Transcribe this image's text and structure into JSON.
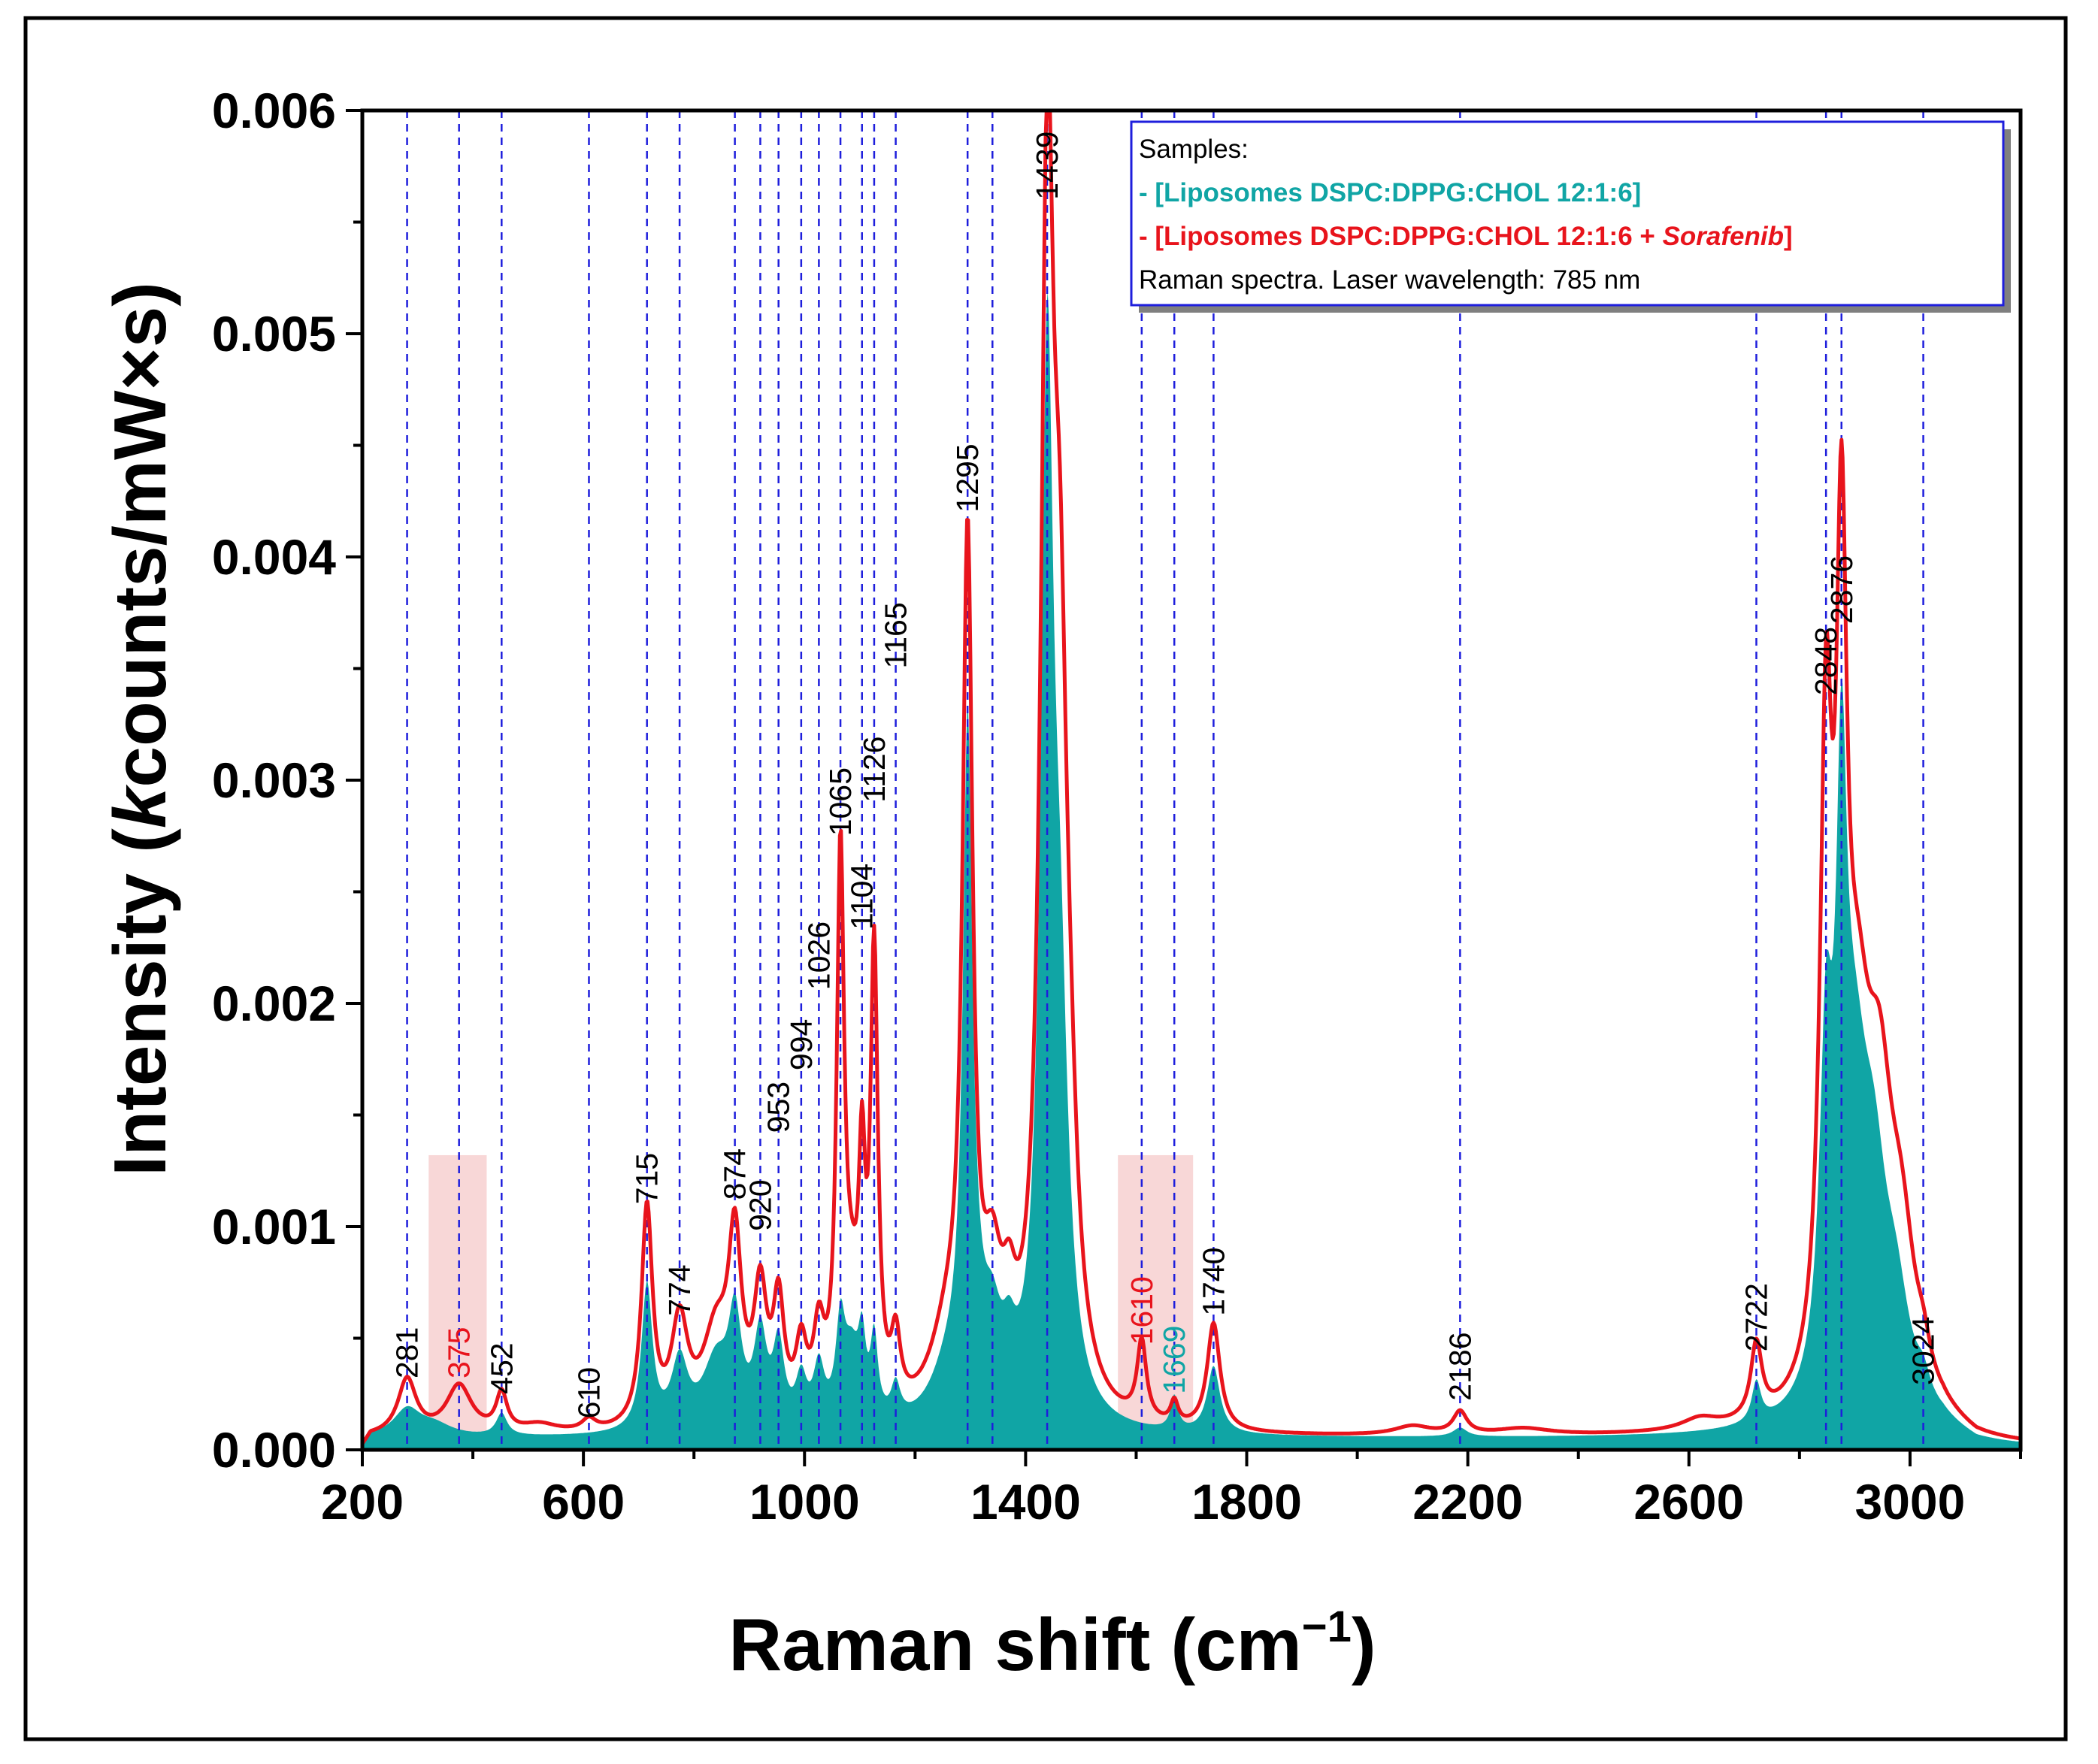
{
  "chart_data": {
    "type": "line",
    "title": "",
    "xlabel": "Raman shift (cm",
    "xlabel_sup": "−1",
    "xlabel_close": ")",
    "ylabel_pre": "Intensity (",
    "ylabel_italic": "k",
    "ylabel_post": "counts/mW×s)",
    "xlim": [
      200,
      3200
    ],
    "ylim": [
      0,
      0.006
    ],
    "x_ticks": [
      200,
      600,
      1000,
      1400,
      1800,
      2200,
      2600,
      3000
    ],
    "x_minor_ticks": [
      400,
      800,
      1200,
      1600,
      2000,
      2400,
      2800,
      3200
    ],
    "y_ticks": [
      {
        "value": 0,
        "label": "0.000"
      },
      {
        "value": 0.001,
        "label": "0.001"
      },
      {
        "value": 0.002,
        "label": "0.002"
      },
      {
        "value": 0.003,
        "label": "0.003"
      },
      {
        "value": 0.004,
        "label": "0.004"
      },
      {
        "value": 0.005,
        "label": "0.005"
      },
      {
        "value": 0.006,
        "label": "0.006"
      }
    ],
    "series": [
      {
        "name": "[Liposomes DSPC:DPPG:CHOL 12:1:6]",
        "color": "#10a5a5",
        "style": "filled",
        "baseline": 5e-05,
        "peaks": [
          {
            "x": 281,
            "h": 0.00012,
            "w": 30
          },
          {
            "x": 330,
            "h": 5e-05,
            "w": 40
          },
          {
            "x": 452,
            "h": 0.0001,
            "w": 12
          },
          {
            "x": 715,
            "h": 0.00065,
            "w": 12
          },
          {
            "x": 774,
            "h": 0.0003,
            "w": 18
          },
          {
            "x": 840,
            "h": 0.0003,
            "w": 30
          },
          {
            "x": 874,
            "h": 0.00045,
            "w": 14
          },
          {
            "x": 920,
            "h": 0.0004,
            "w": 14
          },
          {
            "x": 953,
            "h": 0.00035,
            "w": 12
          },
          {
            "x": 994,
            "h": 0.0002,
            "w": 12
          },
          {
            "x": 1026,
            "h": 0.00025,
            "w": 12
          },
          {
            "x": 1065,
            "h": 0.0004,
            "w": 10
          },
          {
            "x": 1085,
            "h": 0.0003,
            "w": 18
          },
          {
            "x": 1104,
            "h": 0.0003,
            "w": 8
          },
          {
            "x": 1126,
            "h": 0.00035,
            "w": 8
          },
          {
            "x": 1165,
            "h": 0.00015,
            "w": 10
          },
          {
            "x": 1260,
            "h": 0.0002,
            "w": 40
          },
          {
            "x": 1295,
            "h": 0.0028,
            "w": 10
          },
          {
            "x": 1305,
            "h": 0.0003,
            "w": 25
          },
          {
            "x": 1340,
            "h": 0.0003,
            "w": 20
          },
          {
            "x": 1370,
            "h": 0.0002,
            "w": 15
          },
          {
            "x": 1439,
            "h": 0.0045,
            "w": 14
          },
          {
            "x": 1462,
            "h": 0.0015,
            "w": 18
          },
          {
            "x": 1669,
            "h": 0.00015,
            "w": 8
          },
          {
            "x": 1740,
            "h": 0.0003,
            "w": 14
          },
          {
            "x": 2186,
            "h": 4e-05,
            "w": 15
          },
          {
            "x": 2722,
            "h": 0.00018,
            "w": 10
          },
          {
            "x": 2848,
            "h": 0.0014,
            "w": 14
          },
          {
            "x": 2876,
            "h": 0.0022,
            "w": 12
          },
          {
            "x": 2900,
            "h": 0.0012,
            "w": 30
          },
          {
            "x": 2935,
            "h": 0.0008,
            "w": 30
          },
          {
            "x": 2975,
            "h": 0.0004,
            "w": 30
          },
          {
            "x": 3024,
            "h": 0.0001,
            "w": 15
          }
        ]
      },
      {
        "name": "[Liposomes DSPC:DPPG:CHOL 12:1:6 + Sorafenib]",
        "color": "#e8141c",
        "style": "line",
        "baseline": 5e-05,
        "peaks": [
          {
            "x": 281,
            "h": 0.00025,
            "w": 20
          },
          {
            "x": 375,
            "h": 0.00022,
            "w": 28
          },
          {
            "x": 452,
            "h": 0.00017,
            "w": 12
          },
          {
            "x": 520,
            "h": 4e-05,
            "w": 40
          },
          {
            "x": 610,
            "h": 5e-05,
            "w": 15
          },
          {
            "x": 715,
            "h": 0.00098,
            "w": 12
          },
          {
            "x": 774,
            "h": 0.00045,
            "w": 18
          },
          {
            "x": 840,
            "h": 0.0004,
            "w": 30
          },
          {
            "x": 874,
            "h": 0.00075,
            "w": 14
          },
          {
            "x": 920,
            "h": 0.00055,
            "w": 14
          },
          {
            "x": 953,
            "h": 0.0005,
            "w": 12
          },
          {
            "x": 994,
            "h": 0.0003,
            "w": 12
          },
          {
            "x": 1026,
            "h": 0.00035,
            "w": 12
          },
          {
            "x": 1065,
            "h": 0.0024,
            "w": 8
          },
          {
            "x": 1085,
            "h": 0.0004,
            "w": 18
          },
          {
            "x": 1104,
            "h": 0.0009,
            "w": 7
          },
          {
            "x": 1126,
            "h": 0.002,
            "w": 8
          },
          {
            "x": 1165,
            "h": 0.0003,
            "w": 10
          },
          {
            "x": 1260,
            "h": 0.00035,
            "w": 40
          },
          {
            "x": 1295,
            "h": 0.00375,
            "w": 11
          },
          {
            "x": 1340,
            "h": 0.0005,
            "w": 20
          },
          {
            "x": 1370,
            "h": 0.0003,
            "w": 15
          },
          {
            "x": 1439,
            "h": 0.005,
            "w": 14
          },
          {
            "x": 1462,
            "h": 0.0028,
            "w": 18
          },
          {
            "x": 1482,
            "h": 0.0004,
            "w": 15
          },
          {
            "x": 1610,
            "h": 0.00035,
            "w": 10
          },
          {
            "x": 1669,
            "h": 0.0001,
            "w": 8
          },
          {
            "x": 1740,
            "h": 0.00048,
            "w": 14
          },
          {
            "x": 2100,
            "h": 4e-05,
            "w": 40
          },
          {
            "x": 2186,
            "h": 0.0001,
            "w": 15
          },
          {
            "x": 2300,
            "h": 3e-05,
            "w": 60
          },
          {
            "x": 2620,
            "h": 5e-05,
            "w": 40
          },
          {
            "x": 2722,
            "h": 0.00033,
            "w": 12
          },
          {
            "x": 2848,
            "h": 0.0027,
            "w": 13
          },
          {
            "x": 2876,
            "h": 0.0031,
            "w": 12
          },
          {
            "x": 2905,
            "h": 0.0013,
            "w": 30
          },
          {
            "x": 2945,
            "h": 0.0011,
            "w": 30
          },
          {
            "x": 2985,
            "h": 0.0006,
            "w": 30
          },
          {
            "x": 3024,
            "h": 0.00012,
            "w": 15
          }
        ]
      }
    ],
    "vlines": [
      281,
      375,
      452,
      610,
      715,
      774,
      874,
      920,
      953,
      994,
      1026,
      1065,
      1104,
      1126,
      1165,
      1295,
      1340,
      1439,
      1610,
      1669,
      1740,
      2186,
      2722,
      2848,
      2876,
      3024
    ],
    "shaded_regions": [
      {
        "x0": 320,
        "x1": 425,
        "y1": 0.00132
      },
      {
        "x0": 1567,
        "x1": 1703,
        "y1": 0.00132
      }
    ],
    "peak_labels": [
      {
        "label": "281",
        "x": 281,
        "y": 0.00032,
        "color": "#000000"
      },
      {
        "label": "375",
        "x": 375,
        "y": 0.00032,
        "color": "#e8141c"
      },
      {
        "label": "452",
        "x": 452,
        "y": 0.00025,
        "color": "#000000"
      },
      {
        "label": "610",
        "x": 610,
        "y": 0.00014,
        "color": "#000000"
      },
      {
        "label": "715",
        "x": 715,
        "y": 0.0011,
        "color": "#000000"
      },
      {
        "label": "774",
        "x": 774,
        "y": 0.0006,
        "color": "#000000"
      },
      {
        "label": "874",
        "x": 874,
        "y": 0.00112,
        "color": "#000000"
      },
      {
        "label": "920",
        "x": 920,
        "y": 0.00098,
        "color": "#000000"
      },
      {
        "label": "953",
        "x": 953,
        "y": 0.00142,
        "color": "#000000"
      },
      {
        "label": "994",
        "x": 994,
        "y": 0.0017,
        "color": "#000000"
      },
      {
        "label": "1026",
        "x": 1026,
        "y": 0.00206,
        "color": "#000000"
      },
      {
        "label": "1065",
        "x": 1065,
        "y": 0.00275,
        "color": "#000000"
      },
      {
        "label": "1104",
        "x": 1104,
        "y": 0.00233,
        "color": "#000000"
      },
      {
        "label": "1126",
        "x": 1126,
        "y": 0.0029,
        "color": "#000000"
      },
      {
        "label": "1165",
        "x": 1165,
        "y": 0.0035,
        "color": "#000000"
      },
      {
        "label": "1295",
        "x": 1295,
        "y": 0.0042,
        "color": "#000000"
      },
      {
        "label": "1439",
        "x": 1439,
        "y": 0.0056,
        "color": "#000000"
      },
      {
        "label": "1610",
        "x": 1610,
        "y": 0.00047,
        "color": "#e8141c"
      },
      {
        "label": "1669",
        "x": 1669,
        "y": 0.00025,
        "color": "#10a5a5"
      },
      {
        "label": "1740",
        "x": 1740,
        "y": 0.0006,
        "color": "#000000"
      },
      {
        "label": "2186",
        "x": 2186,
        "y": 0.00022,
        "color": "#000000"
      },
      {
        "label": "2722",
        "x": 2722,
        "y": 0.00044,
        "color": "#000000"
      },
      {
        "label": "2848",
        "x": 2848,
        "y": 0.00338,
        "color": "#000000"
      },
      {
        "label": "2876",
        "x": 2876,
        "y": 0.0037,
        "color": "#000000"
      },
      {
        "label": "3024",
        "x": 3024,
        "y": 0.00029,
        "color": "#000000"
      }
    ],
    "legend": {
      "position": "top-right",
      "heading": "Samples:",
      "line1": "- [Liposomes DSPC:DPPG:CHOL 12:1:6]",
      "line2_pre": "- [Liposomes DSPC:DPPG:CHOL 12:1:6 + ",
      "line2_italic": "Sorafenib",
      "line2_post": "]",
      "note": "Raman spectra. Laser wavelength: 785 nm"
    }
  }
}
